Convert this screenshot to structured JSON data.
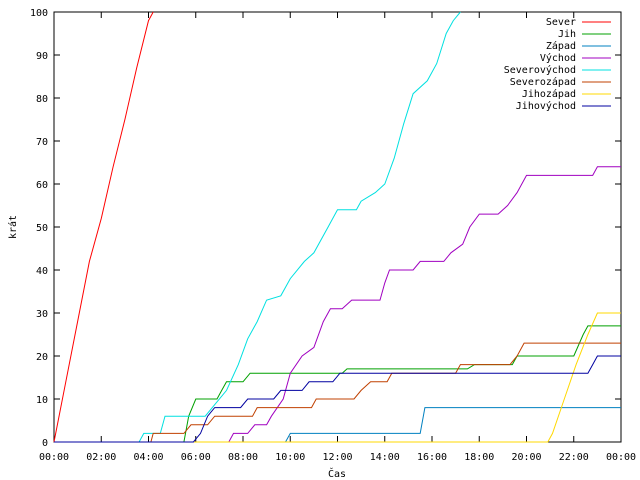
{
  "chart_data": {
    "type": "line",
    "title": "",
    "xlabel": "Čas",
    "ylabel": "krát",
    "xlim": [
      0,
      24
    ],
    "ylim": [
      0,
      100
    ],
    "x_ticks": [
      "00:00",
      "02:00",
      "04:00",
      "06:00",
      "08:00",
      "10:00",
      "12:00",
      "14:00",
      "16:00",
      "18:00",
      "20:00",
      "22:00",
      "00:00"
    ],
    "y_ticks": [
      0,
      10,
      20,
      30,
      40,
      50,
      60,
      70,
      80,
      90,
      100
    ],
    "legend_position": "top-right",
    "grid": false,
    "series": [
      {
        "name": "Sever",
        "color": "#ff0000",
        "points": [
          [
            0,
            0
          ],
          [
            0.5,
            14
          ],
          [
            1,
            28
          ],
          [
            1.5,
            42
          ],
          [
            2,
            52
          ],
          [
            2.5,
            64
          ],
          [
            3,
            75
          ],
          [
            3.5,
            87
          ],
          [
            4,
            98
          ],
          [
            4.2,
            100
          ]
        ]
      },
      {
        "name": "Jih",
        "color": "#00a000",
        "points": [
          [
            0,
            0
          ],
          [
            5.5,
            0
          ],
          [
            5.7,
            6
          ],
          [
            6,
            10
          ],
          [
            6.9,
            10
          ],
          [
            7.1,
            12
          ],
          [
            7.3,
            14
          ],
          [
            8,
            14
          ],
          [
            8.3,
            16
          ],
          [
            12.2,
            16
          ],
          [
            12.4,
            17
          ],
          [
            17.5,
            17
          ],
          [
            17.8,
            18
          ],
          [
            19.4,
            18
          ],
          [
            19.6,
            20
          ],
          [
            22,
            20
          ],
          [
            22.4,
            25
          ],
          [
            22.6,
            27
          ],
          [
            24,
            27
          ]
        ]
      },
      {
        "name": "Západ",
        "color": "#0080c0",
        "points": [
          [
            0,
            0
          ],
          [
            9.8,
            0
          ],
          [
            10,
            2
          ],
          [
            15.5,
            2
          ],
          [
            15.7,
            8
          ],
          [
            24,
            8
          ]
        ]
      },
      {
        "name": "Východ",
        "color": "#a000c0",
        "points": [
          [
            0,
            0
          ],
          [
            7.4,
            0
          ],
          [
            7.6,
            2
          ],
          [
            8.2,
            2
          ],
          [
            8.5,
            4
          ],
          [
            9,
            4
          ],
          [
            9.2,
            6
          ],
          [
            9.7,
            10
          ],
          [
            10,
            16
          ],
          [
            10.5,
            20
          ],
          [
            11,
            22
          ],
          [
            11.4,
            28
          ],
          [
            11.7,
            31
          ],
          [
            12.2,
            31
          ],
          [
            12.6,
            33
          ],
          [
            13.8,
            33
          ],
          [
            14,
            37
          ],
          [
            14.2,
            40
          ],
          [
            15.2,
            40
          ],
          [
            15.5,
            42
          ],
          [
            16.5,
            42
          ],
          [
            16.8,
            44
          ],
          [
            17.3,
            46
          ],
          [
            17.6,
            50
          ],
          [
            18,
            53
          ],
          [
            18.8,
            53
          ],
          [
            19.2,
            55
          ],
          [
            19.6,
            58
          ],
          [
            20,
            62
          ],
          [
            22.8,
            62
          ],
          [
            23,
            64
          ],
          [
            24,
            64
          ]
        ]
      },
      {
        "name": "Severovýchod",
        "color": "#00e0e0",
        "points": [
          [
            0,
            0
          ],
          [
            3.6,
            0
          ],
          [
            3.8,
            2
          ],
          [
            4.5,
            2
          ],
          [
            4.7,
            6
          ],
          [
            6.4,
            6
          ],
          [
            6.7,
            8
          ],
          [
            7.3,
            12
          ],
          [
            7.8,
            18
          ],
          [
            8.2,
            24
          ],
          [
            8.6,
            28
          ],
          [
            9,
            33
          ],
          [
            9.6,
            34
          ],
          [
            10,
            38
          ],
          [
            10.6,
            42
          ],
          [
            11,
            44
          ],
          [
            11.6,
            50
          ],
          [
            12,
            54
          ],
          [
            12.8,
            54
          ],
          [
            13,
            56
          ],
          [
            13.6,
            58
          ],
          [
            14,
            60
          ],
          [
            14.4,
            66
          ],
          [
            14.8,
            74
          ],
          [
            15.2,
            81
          ],
          [
            15.8,
            84
          ],
          [
            16.2,
            88
          ],
          [
            16.6,
            95
          ],
          [
            16.9,
            98
          ],
          [
            17.2,
            100
          ]
        ]
      },
      {
        "name": "Severozápad",
        "color": "#c04000",
        "points": [
          [
            0,
            0
          ],
          [
            4.1,
            0
          ],
          [
            4.2,
            2
          ],
          [
            5.5,
            2
          ],
          [
            5.8,
            4
          ],
          [
            6.5,
            4
          ],
          [
            6.8,
            6
          ],
          [
            8.4,
            6
          ],
          [
            8.6,
            8
          ],
          [
            10.9,
            8
          ],
          [
            11.1,
            10
          ],
          [
            12.7,
            10
          ],
          [
            13,
            12
          ],
          [
            13.4,
            14
          ],
          [
            14.1,
            14
          ],
          [
            14.3,
            16
          ],
          [
            17,
            16
          ],
          [
            17.2,
            18
          ],
          [
            19.3,
            18
          ],
          [
            19.6,
            20
          ],
          [
            19.9,
            23
          ],
          [
            24,
            23
          ]
        ]
      },
      {
        "name": "Jihozápad",
        "color": "#ffd800",
        "points": [
          [
            0,
            0
          ],
          [
            20.9,
            0
          ],
          [
            21.1,
            2
          ],
          [
            21.6,
            10
          ],
          [
            22.1,
            18
          ],
          [
            22.6,
            25
          ],
          [
            23,
            30
          ],
          [
            24,
            30
          ]
        ]
      },
      {
        "name": "Jihovýchod",
        "color": "#0000a0",
        "points": [
          [
            0,
            0
          ],
          [
            5.9,
            0
          ],
          [
            6.2,
            2
          ],
          [
            6.5,
            6
          ],
          [
            6.8,
            8
          ],
          [
            7.9,
            8
          ],
          [
            8.2,
            10
          ],
          [
            9.3,
            10
          ],
          [
            9.6,
            12
          ],
          [
            10.5,
            12
          ],
          [
            10.8,
            14
          ],
          [
            11.8,
            14
          ],
          [
            12.1,
            16
          ],
          [
            22.6,
            16
          ],
          [
            22.8,
            18
          ],
          [
            23,
            20
          ],
          [
            24,
            20
          ]
        ]
      }
    ]
  }
}
